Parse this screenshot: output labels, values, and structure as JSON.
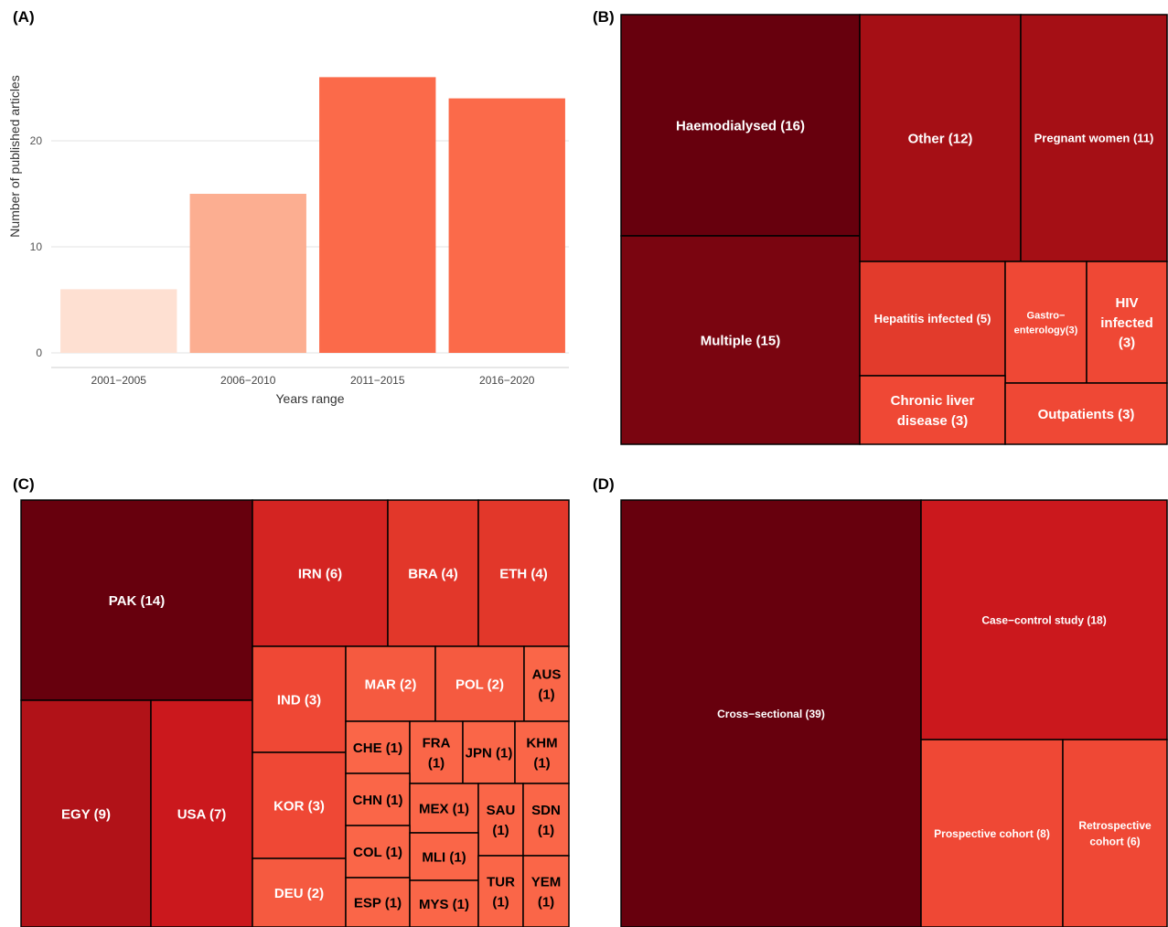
{
  "panels": {
    "a": "(A)",
    "b": "(B)",
    "c": "(C)",
    "d": "(D)"
  },
  "chart_data": [
    {
      "type": "bar",
      "xlabel": "Years range",
      "ylabel": "Number of published articles",
      "categories": [
        "2001−2005",
        "2006−2010",
        "2011−2015",
        "2016−2020"
      ],
      "values": [
        6,
        15,
        26,
        24
      ],
      "colors": [
        "#fee0d2",
        "#fcae91",
        "#fb6a4a",
        "#fb6a4a"
      ],
      "yticks": [
        0,
        10,
        20
      ],
      "ylim": [
        0,
        27
      ],
      "grid": true
    },
    {
      "type": "treemap",
      "items": [
        {
          "label": "Haemodialysed (16)",
          "value": 16,
          "color": "#67000d"
        },
        {
          "label": "Multiple (15)",
          "value": 15,
          "color": "#7a0510"
        },
        {
          "label": "Other (12)",
          "value": 12,
          "color": "#a50f15"
        },
        {
          "label": "Pregnant women (11)",
          "value": 11,
          "color": "#a50f15"
        },
        {
          "label": "Hepatitis infected (5)",
          "value": 5,
          "color": "#e23b2c"
        },
        {
          "label": "Gastro− enterology(3)",
          "lines": [
            "Gastro−",
            "enterology(3)"
          ],
          "value": 3,
          "color": "#ef4835"
        },
        {
          "label": "HIV infected (3)",
          "lines": [
            "HIV",
            "infected",
            "(3)"
          ],
          "value": 3,
          "color": "#ef4835"
        },
        {
          "label": "Chronic liver disease (3)",
          "lines": [
            "Chronic liver",
            "disease (3)"
          ],
          "value": 3,
          "color": "#ef4835"
        },
        {
          "label": "Outpatients (3)",
          "value": 3,
          "color": "#ef4835"
        }
      ]
    },
    {
      "type": "treemap",
      "items": [
        {
          "label": "PAK (14)",
          "value": 14,
          "color": "#67000d"
        },
        {
          "label": "EGY (9)",
          "value": 9,
          "color": "#b11218"
        },
        {
          "label": "USA (7)",
          "value": 7,
          "color": "#cb181d"
        },
        {
          "label": "IRN (6)",
          "value": 6,
          "color": "#d42422"
        },
        {
          "label": "BRA (4)",
          "value": 4,
          "color": "#e2372a"
        },
        {
          "label": "ETH (4)",
          "value": 4,
          "color": "#e2372a"
        },
        {
          "label": "IND (3)",
          "value": 3,
          "color": "#ef4835"
        },
        {
          "label": "KOR (3)",
          "value": 3,
          "color": "#ef4835"
        },
        {
          "label": "DEU (2)",
          "value": 2,
          "color": "#f55a40"
        },
        {
          "label": "MAR (2)",
          "value": 2,
          "color": "#f55a40"
        },
        {
          "label": "POL (2)",
          "value": 2,
          "color": "#f55a40"
        },
        {
          "label": "AUS (1)",
          "lines": [
            "AUS",
            "(1)"
          ],
          "value": 1,
          "color": "#fa6648",
          "dark": true
        },
        {
          "label": "CHE (1)",
          "value": 1,
          "color": "#fa6648",
          "dark": true
        },
        {
          "label": "FRA (1)",
          "lines": [
            "FRA",
            "(1)"
          ],
          "value": 1,
          "color": "#fa6648",
          "dark": true
        },
        {
          "label": "JPN (1)",
          "value": 1,
          "color": "#fa6648",
          "dark": true
        },
        {
          "label": "KHM (1)",
          "lines": [
            "KHM",
            "(1)"
          ],
          "value": 1,
          "color": "#fa6648",
          "dark": true
        },
        {
          "label": "CHN (1)",
          "value": 1,
          "color": "#fa6648",
          "dark": true
        },
        {
          "label": "MEX (1)",
          "value": 1,
          "color": "#fa6648",
          "dark": true
        },
        {
          "label": "SAU (1)",
          "lines": [
            "SAU",
            "(1)"
          ],
          "value": 1,
          "color": "#fa6648",
          "dark": true
        },
        {
          "label": "SDN (1)",
          "lines": [
            "SDN",
            "(1)"
          ],
          "value": 1,
          "color": "#fa6648",
          "dark": true
        },
        {
          "label": "COL (1)",
          "value": 1,
          "color": "#fa6648",
          "dark": true
        },
        {
          "label": "MLI (1)",
          "value": 1,
          "color": "#fa6648",
          "dark": true
        },
        {
          "label": "ESP (1)",
          "value": 1,
          "color": "#fa6648",
          "dark": true
        },
        {
          "label": "MYS (1)",
          "value": 1,
          "color": "#fa6648",
          "dark": true
        },
        {
          "label": "TUR (1)",
          "lines": [
            "TUR",
            "(1)"
          ],
          "value": 1,
          "color": "#fa6648",
          "dark": true
        },
        {
          "label": "YEM (1)",
          "lines": [
            "YEM",
            "(1)"
          ],
          "value": 1,
          "color": "#fa6648",
          "dark": true
        }
      ]
    },
    {
      "type": "treemap",
      "items": [
        {
          "label": "Cross−sectional (39)",
          "value": 39,
          "color": "#67000d"
        },
        {
          "label": "Case−control study (18)",
          "value": 18,
          "color": "#cb181d"
        },
        {
          "label": "Prospective cohort (8)",
          "value": 8,
          "color": "#ef4835"
        },
        {
          "label": "Retrospective cohort (6)",
          "lines": [
            "Retrospective",
            "cohort (6)"
          ],
          "value": 6,
          "color": "#ef4835"
        }
      ]
    }
  ]
}
